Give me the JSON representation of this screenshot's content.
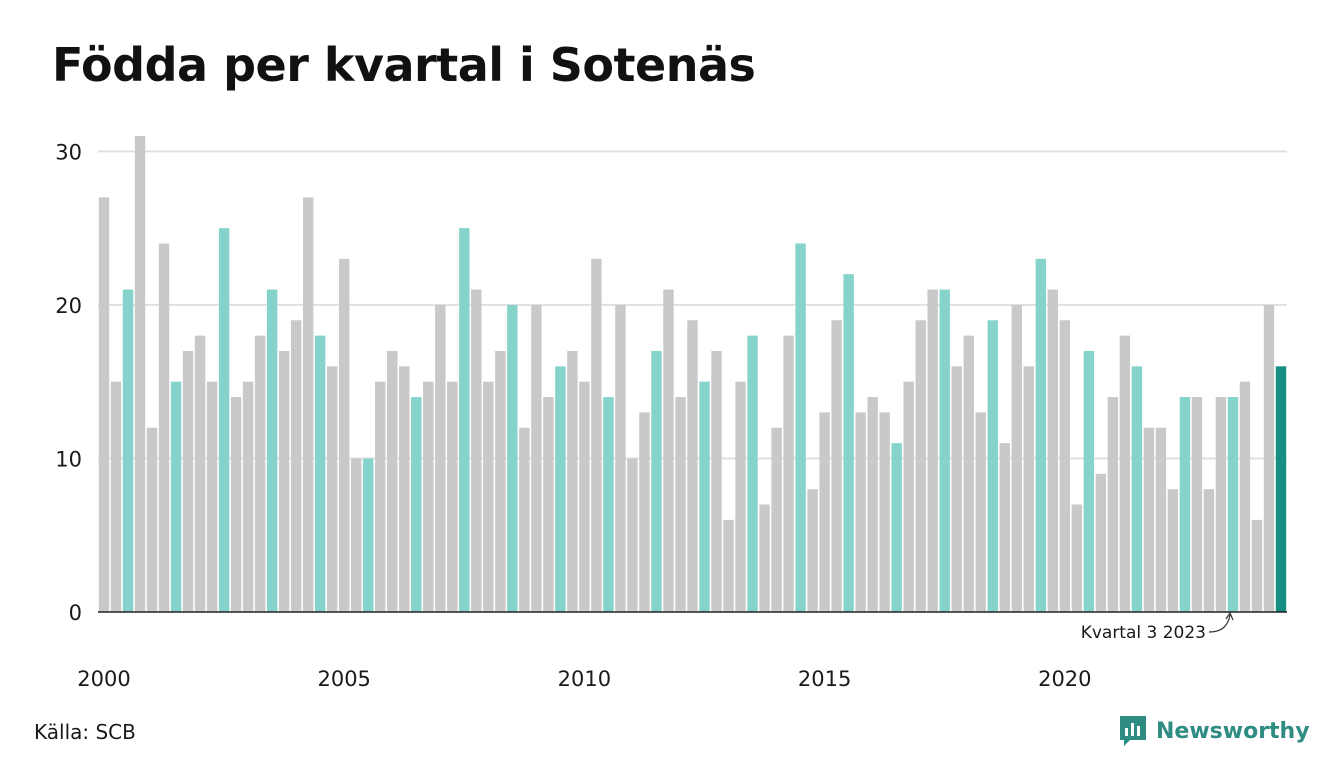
{
  "title": "Födda per kvartal i Sotenäs",
  "source": "Källa: SCB",
  "brand": "Newsworthy",
  "colors": {
    "bar_default": "#c9c9c9",
    "bar_q3": "#86d3cb",
    "bar_latest": "#168f83",
    "grid": "#e0e0e0",
    "axis": "#222222",
    "brand": "#2f8c82"
  },
  "chart_data": {
    "type": "bar",
    "title": "Födda per kvartal i Sotenäs",
    "xlabel": "",
    "ylabel": "",
    "ylim": [
      0,
      31
    ],
    "y_ticks": [
      0,
      10,
      20,
      30
    ],
    "x_ticks": [
      "2000",
      "2005",
      "2010",
      "2015",
      "2020"
    ],
    "grid": true,
    "highlight": "third quarter of each year",
    "annotation": "Kvartal 3 2023",
    "categories": [
      "2000 K1",
      "2000 K2",
      "2000 K3",
      "2000 K4",
      "2001 K1",
      "2001 K2",
      "2001 K3",
      "2001 K4",
      "2002 K1",
      "2002 K2",
      "2002 K3",
      "2002 K4",
      "2003 K1",
      "2003 K2",
      "2003 K3",
      "2003 K4",
      "2004 K1",
      "2004 K2",
      "2004 K3",
      "2004 K4",
      "2005 K1",
      "2005 K2",
      "2005 K3",
      "2005 K4",
      "2006 K1",
      "2006 K2",
      "2006 K3",
      "2006 K4",
      "2007 K1",
      "2007 K2",
      "2007 K3",
      "2007 K4",
      "2008 K1",
      "2008 K2",
      "2008 K3",
      "2008 K4",
      "2009 K1",
      "2009 K2",
      "2009 K3",
      "2009 K4",
      "2010 K1",
      "2010 K2",
      "2010 K3",
      "2010 K4",
      "2011 K1",
      "2011 K2",
      "2011 K3",
      "2011 K4",
      "2012 K1",
      "2012 K2",
      "2012 K3",
      "2012 K4",
      "2013 K1",
      "2013 K2",
      "2013 K3",
      "2013 K4",
      "2014 K1",
      "2014 K2",
      "2014 K3",
      "2014 K4",
      "2015 K1",
      "2015 K2",
      "2015 K3",
      "2015 K4",
      "2016 K1",
      "2016 K2",
      "2016 K3",
      "2016 K4",
      "2017 K1",
      "2017 K2",
      "2017 K3",
      "2017 K4",
      "2018 K1",
      "2018 K2",
      "2018 K3",
      "2018 K4",
      "2019 K1",
      "2019 K2",
      "2019 K3",
      "2019 K4",
      "2020 K1",
      "2020 K2",
      "2020 K3",
      "2020 K4",
      "2021 K1",
      "2021 K2",
      "2021 K3",
      "2021 K4",
      "2022 K1",
      "2022 K2",
      "2022 K3",
      "2022 K4",
      "2023 K1",
      "2023 K2",
      "2023 K3",
      "2023 K4",
      "2024 K1",
      "2024 K2",
      "2024 K3"
    ],
    "values": [
      27,
      15,
      21,
      31,
      12,
      24,
      15,
      17,
      18,
      15,
      25,
      14,
      15,
      18,
      21,
      17,
      19,
      27,
      18,
      16,
      23,
      10,
      10,
      15,
      17,
      16,
      14,
      15,
      20,
      15,
      25,
      21,
      15,
      17,
      20,
      12,
      20,
      14,
      16,
      17,
      15,
      23,
      14,
      20,
      10,
      13,
      17,
      21,
      14,
      19,
      15,
      17,
      6,
      15,
      18,
      7,
      12,
      18,
      24,
      8,
      13,
      19,
      22,
      13,
      14,
      13,
      11,
      15,
      19,
      21,
      21,
      16,
      18,
      13,
      19,
      11,
      20,
      16,
      23,
      21,
      19,
      7,
      17,
      9,
      14,
      18,
      16,
      12,
      12,
      8,
      14,
      14,
      8,
      14,
      14,
      15,
      6,
      20,
      16
    ]
  }
}
